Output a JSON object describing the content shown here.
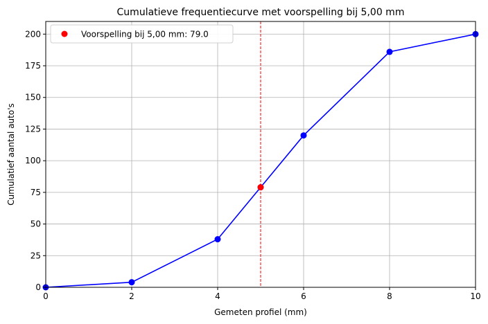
{
  "chart_data": {
    "type": "line",
    "title": "Cumulatieve frequentiecurve met voorspelling bij 5,00 mm",
    "xlabel": "Gemeten profiel (mm)",
    "ylabel": "Cumulatief aantal auto's",
    "xlim": [
      0,
      10
    ],
    "ylim": [
      0,
      210
    ],
    "xticks": [
      0,
      2,
      4,
      6,
      8,
      10
    ],
    "yticks": [
      0,
      25,
      50,
      75,
      100,
      125,
      150,
      175,
      200
    ],
    "grid": true,
    "legend_position": "top-left",
    "series": [
      {
        "type": "line",
        "color": "#0000ff",
        "x": [
          0,
          2,
          4,
          5,
          6,
          8,
          10
        ],
        "y": [
          0,
          4,
          38,
          79,
          120,
          186,
          200
        ]
      },
      {
        "type": "scatter",
        "name": "Voorspelling bij 5,00 mm: 79.0",
        "color": "#ff0000",
        "x": [
          5
        ],
        "y": [
          79
        ]
      }
    ],
    "reference_line": {
      "orientation": "vertical",
      "x": 5,
      "color": "#ff0000",
      "style": "dashed"
    }
  }
}
